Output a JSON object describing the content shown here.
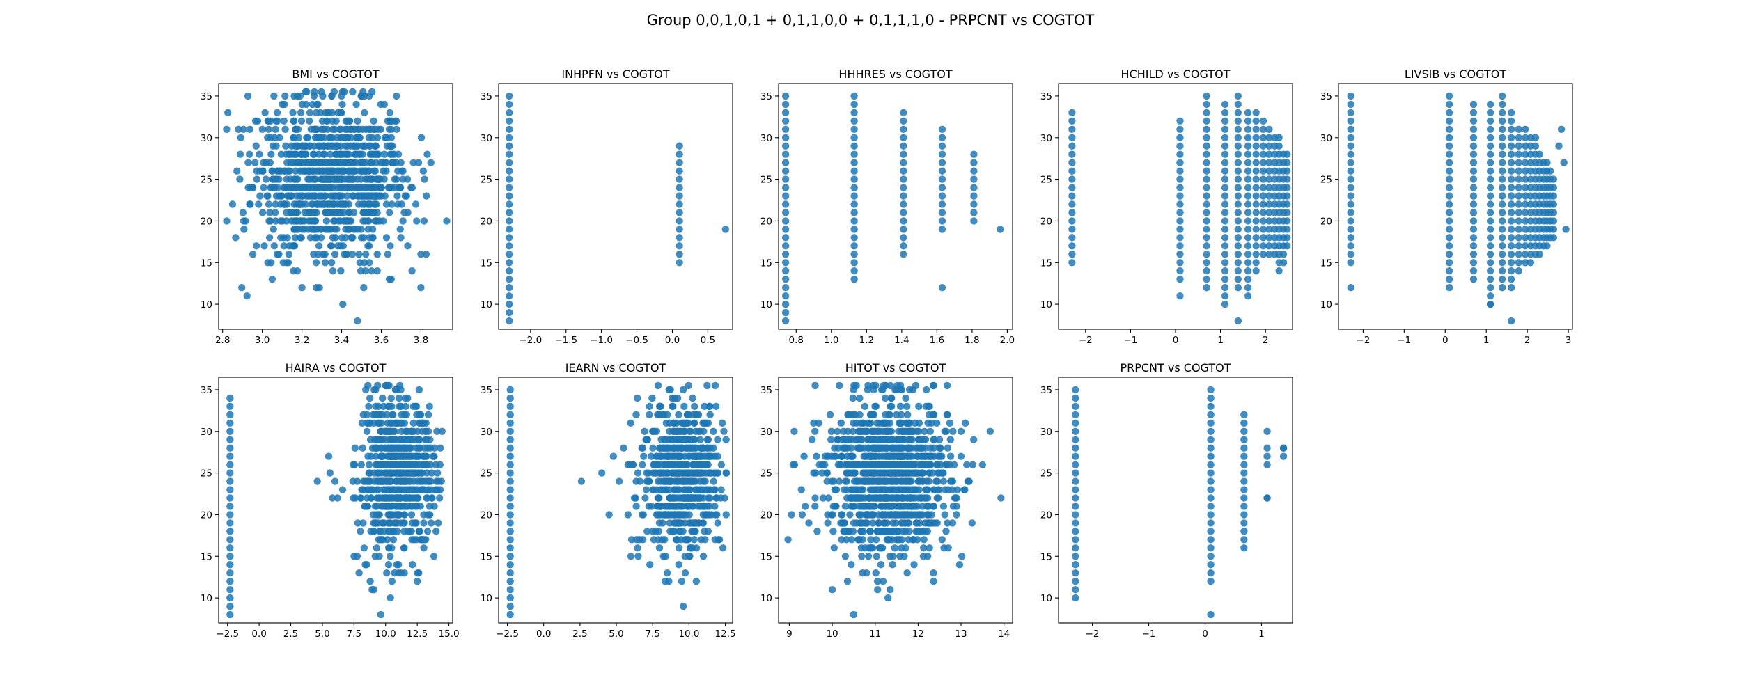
{
  "figure": {
    "title": "Group 0,0,1,0,1 + 0,1,1,0,0 + 0,1,1,1,0 - PRPCNT vs COGTOT"
  },
  "colors": {
    "marker": "#1f77b4"
  },
  "chart_data": [
    {
      "type": "scatter",
      "title": "BMI vs COGTOT",
      "xlim": [
        2.78,
        3.96
      ],
      "ylim": [
        7,
        36.5
      ],
      "xticks": [
        2.8,
        3.0,
        3.2,
        3.4,
        3.6,
        3.8
      ],
      "xtick_labels": [
        "2.8",
        "3.0",
        "3.2",
        "3.4",
        "3.6",
        "3.8"
      ],
      "yticks": [
        10,
        15,
        20,
        25,
        30,
        35
      ],
      "ytick_labels": [
        "10",
        "15",
        "20",
        "25",
        "30",
        "35"
      ],
      "cloud": {
        "x_center": 3.35,
        "x_spread": 0.2,
        "x_min": 2.82,
        "x_max": 3.93,
        "y_center": 24.5,
        "y_spread": 4.8,
        "n": 1000
      },
      "x": [
        2.82,
        2.85,
        2.88,
        3.93,
        3.8,
        3.85,
        3.05,
        3.2,
        3.5,
        3.48,
        3.35,
        3.4,
        3.65,
        3.75
      ],
      "y": [
        31,
        22,
        31,
        20,
        16,
        27,
        13,
        12,
        35,
        8,
        35,
        35,
        13,
        24
      ]
    },
    {
      "type": "scatter",
      "title": "INHPFN vs COGTOT",
      "xlim": [
        -2.45,
        0.85
      ],
      "ylim": [
        7,
        36.5
      ],
      "xticks": [
        -2.0,
        -1.5,
        -1.0,
        -0.5,
        0.0,
        0.5
      ],
      "xtick_labels": [
        "−2.0",
        "−1.5",
        "−1.0",
        "−0.5",
        "0.0",
        "0.5"
      ],
      "yticks": [
        10,
        15,
        20,
        25,
        30,
        35
      ],
      "ytick_labels": [
        "10",
        "15",
        "20",
        "25",
        "30",
        "35"
      ],
      "columns": [
        {
          "x": -2.3,
          "y_min": 8,
          "y_max": 35
        },
        {
          "x": 0.1,
          "y_min": 15,
          "y_max": 29
        }
      ],
      "x": [
        0.75
      ],
      "y": [
        19
      ]
    },
    {
      "type": "scatter",
      "title": "HHHRES vs COGTOT",
      "xlim": [
        0.7,
        2.03
      ],
      "ylim": [
        7,
        36.5
      ],
      "xticks": [
        0.8,
        1.0,
        1.2,
        1.4,
        1.6,
        1.8,
        2.0
      ],
      "xtick_labels": [
        "0.8",
        "1.0",
        "1.2",
        "1.4",
        "1.6",
        "1.8",
        "2.0"
      ],
      "yticks": [
        10,
        15,
        20,
        25,
        30,
        35
      ],
      "ytick_labels": [
        "10",
        "15",
        "20",
        "25",
        "30",
        "35"
      ],
      "columns": [
        {
          "x": 0.74,
          "y_min": 8,
          "y_max": 35
        },
        {
          "x": 1.13,
          "y_min": 13,
          "y_max": 35
        },
        {
          "x": 1.41,
          "y_min": 16,
          "y_max": 33
        },
        {
          "x": 1.63,
          "y_min": 19,
          "y_max": 31
        },
        {
          "x": 1.81,
          "y_min": 20,
          "y_max": 28
        }
      ],
      "x": [
        1.63,
        1.96
      ],
      "y": [
        12,
        19
      ]
    },
    {
      "type": "scatter",
      "title": "HCHILD vs COGTOT",
      "xlim": [
        -2.6,
        2.6
      ],
      "ylim": [
        7,
        36.5
      ],
      "xticks": [
        -2,
        -1,
        0,
        1,
        2
      ],
      "xtick_labels": [
        "−2",
        "−1",
        "0",
        "1",
        "2"
      ],
      "yticks": [
        10,
        15,
        20,
        25,
        30,
        35
      ],
      "ytick_labels": [
        "10",
        "15",
        "20",
        "25",
        "30",
        "35"
      ],
      "columns": [
        {
          "x": -2.3,
          "y_min": 15,
          "y_max": 33
        },
        {
          "x": 0.1,
          "y_min": 13,
          "y_max": 32
        },
        {
          "x": 0.69,
          "y_min": 12,
          "y_max": 35
        },
        {
          "x": 1.1,
          "y_min": 10,
          "y_max": 34
        },
        {
          "x": 1.39,
          "y_min": 12,
          "y_max": 35
        },
        {
          "x": 1.61,
          "y_min": 12,
          "y_max": 33
        },
        {
          "x": 1.79,
          "y_min": 14,
          "y_max": 33
        },
        {
          "x": 1.95,
          "y_min": 16,
          "y_max": 32
        },
        {
          "x": 2.08,
          "y_min": 16,
          "y_max": 31
        },
        {
          "x": 2.2,
          "y_min": 16,
          "y_max": 30
        },
        {
          "x": 2.3,
          "y_min": 14,
          "y_max": 30
        },
        {
          "x": 2.4,
          "y_min": 15,
          "y_max": 28
        },
        {
          "x": 2.48,
          "y_min": 17,
          "y_max": 28
        }
      ],
      "x": [
        0.1,
        1.39,
        1.61
      ],
      "y": [
        11,
        8,
        11
      ]
    },
    {
      "type": "scatter",
      "title": "LIVSIB vs COGTOT",
      "xlim": [
        -2.6,
        3.1
      ],
      "ylim": [
        7,
        36.5
      ],
      "xticks": [
        -2,
        -1,
        0,
        1,
        2,
        3
      ],
      "xtick_labels": [
        "−2",
        "−1",
        "0",
        "1",
        "2",
        "3"
      ],
      "yticks": [
        10,
        15,
        20,
        25,
        30,
        35
      ],
      "ytick_labels": [
        "10",
        "15",
        "20",
        "25",
        "30",
        "35"
      ],
      "columns": [
        {
          "x": -2.3,
          "y_min": 15,
          "y_max": 35
        },
        {
          "x": 0.1,
          "y_min": 12,
          "y_max": 35
        },
        {
          "x": 0.69,
          "y_min": 13,
          "y_max": 34
        },
        {
          "x": 1.1,
          "y_min": 10,
          "y_max": 34
        },
        {
          "x": 1.39,
          "y_min": 12,
          "y_max": 35
        },
        {
          "x": 1.61,
          "y_min": 12,
          "y_max": 33
        },
        {
          "x": 1.79,
          "y_min": 14,
          "y_max": 31
        },
        {
          "x": 1.95,
          "y_min": 15,
          "y_max": 31
        },
        {
          "x": 2.08,
          "y_min": 15,
          "y_max": 30
        },
        {
          "x": 2.2,
          "y_min": 16,
          "y_max": 30
        },
        {
          "x": 2.3,
          "y_min": 16,
          "y_max": 28
        },
        {
          "x": 2.4,
          "y_min": 17,
          "y_max": 27
        },
        {
          "x": 2.48,
          "y_min": 17,
          "y_max": 27
        },
        {
          "x": 2.56,
          "y_min": 18,
          "y_max": 26
        },
        {
          "x": 2.64,
          "y_min": 18,
          "y_max": 25
        }
      ],
      "x": [
        -2.3,
        1.1,
        1.61,
        2.83,
        2.77,
        2.89,
        2.94
      ],
      "y": [
        12,
        10,
        8,
        31,
        29,
        27,
        19
      ]
    },
    {
      "type": "scatter",
      "title": "HAIRA vs COGTOT",
      "xlim": [
        -3.2,
        15.3
      ],
      "ylim": [
        7,
        36.5
      ],
      "xticks": [
        -2.5,
        0.0,
        2.5,
        5.0,
        7.5,
        10.0,
        12.5,
        15.0
      ],
      "xtick_labels": [
        "−2.5",
        "0.0",
        "2.5",
        "5.0",
        "7.5",
        "10.0",
        "12.5",
        "15.0"
      ],
      "yticks": [
        10,
        15,
        20,
        25,
        30,
        35
      ],
      "ytick_labels": [
        "10",
        "15",
        "20",
        "25",
        "30",
        "35"
      ],
      "columns": [
        {
          "x": -2.3,
          "y_min": 8,
          "y_max": 34
        }
      ],
      "cloud": {
        "x_center": 10.9,
        "x_spread": 1.55,
        "x_min": 7.3,
        "x_max": 14.5,
        "y_center": 24.5,
        "y_spread": 4.5,
        "n": 700
      },
      "x": [
        4.6,
        5.5,
        5.8,
        6.0,
        6.2,
        5.6,
        6.6,
        7.9,
        8.5,
        10.5,
        11.2,
        12.5,
        14.3,
        8.3,
        10.9
      ],
      "y": [
        24,
        27,
        22,
        24,
        22,
        25,
        23,
        13,
        14,
        12,
        35,
        12,
        26,
        16,
        35
      ]
    },
    {
      "type": "scatter",
      "title": "IEARN vs COGTOT",
      "xlim": [
        -3.1,
        13.0
      ],
      "ylim": [
        7,
        36.5
      ],
      "xticks": [
        -2.5,
        0.0,
        2.5,
        5.0,
        7.5,
        10.0,
        12.5
      ],
      "xtick_labels": [
        "−2.5",
        "0.0",
        "2.5",
        "5.0",
        "7.5",
        "10.0",
        "12.5"
      ],
      "yticks": [
        10,
        15,
        20,
        25,
        30,
        35
      ],
      "ytick_labels": [
        "10",
        "15",
        "20",
        "25",
        "30",
        "35"
      ],
      "columns": [
        {
          "x": -2.3,
          "y_min": 8,
          "y_max": 35
        }
      ],
      "cloud": {
        "x_center": 9.5,
        "x_spread": 1.45,
        "x_min": 5.2,
        "x_max": 12.6,
        "y_center": 24.5,
        "y_spread": 4.5,
        "n": 650
      },
      "x": [
        2.6,
        4.0,
        4.5,
        4.8,
        5.2,
        5.5,
        6.0,
        6.5,
        9.5,
        10.5,
        8.5,
        12.4
      ],
      "y": [
        24,
        25,
        20,
        27,
        24,
        28,
        15,
        15,
        12,
        12,
        13,
        30
      ]
    },
    {
      "type": "scatter",
      "title": "HITOT vs COGTOT",
      "xlim": [
        8.75,
        14.2
      ],
      "ylim": [
        7,
        36.5
      ],
      "xticks": [
        9,
        10,
        11,
        12,
        13,
        14
      ],
      "xtick_labels": [
        "9",
        "10",
        "11",
        "12",
        "13",
        "14"
      ],
      "yticks": [
        10,
        15,
        20,
        25,
        30,
        35
      ],
      "ytick_labels": [
        "10",
        "15",
        "20",
        "25",
        "30",
        "35"
      ],
      "cloud": {
        "x_center": 11.3,
        "x_spread": 0.72,
        "x_min": 9.0,
        "x_max": 13.9,
        "y_center": 24.5,
        "y_spread": 4.6,
        "n": 1100
      },
      "x": [
        8.97,
        13.93,
        10.5,
        10.0,
        11.3,
        11.6,
        11.8,
        9.3,
        13.5,
        13.1
      ],
      "y": [
        17,
        22,
        8,
        11,
        10,
        35,
        35,
        20,
        26,
        31
      ]
    },
    {
      "type": "scatter",
      "title": "PRPCNT vs COGTOT",
      "xlim": [
        -2.6,
        1.55
      ],
      "ylim": [
        7,
        36.5
      ],
      "xticks": [
        -2,
        -1,
        0,
        1
      ],
      "xtick_labels": [
        "−2",
        "−1",
        "0",
        "1"
      ],
      "yticks": [
        10,
        15,
        20,
        25,
        30,
        35
      ],
      "ytick_labels": [
        "10",
        "15",
        "20",
        "25",
        "30",
        "35"
      ],
      "columns": [
        {
          "x": -2.3,
          "y_min": 10,
          "y_max": 35
        },
        {
          "x": 0.1,
          "y_min": 12,
          "y_max": 35
        },
        {
          "x": 0.69,
          "y_min": 16,
          "y_max": 32
        }
      ],
      "x": [
        0.1,
        1.1,
        1.1,
        1.1,
        1.1,
        1.1,
        1.1,
        1.39,
        1.39,
        1.39
      ],
      "y": [
        8,
        30,
        28,
        27,
        26,
        22,
        22,
        28,
        27,
        28
      ]
    }
  ]
}
